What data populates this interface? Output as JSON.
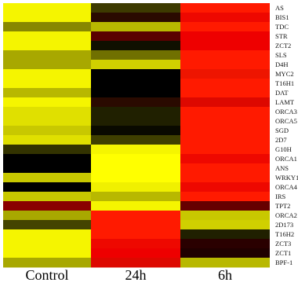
{
  "chart_data": {
    "type": "heatmap",
    "columns": [
      "Control",
      "24h",
      "6h"
    ],
    "rows": [
      "AS",
      "BIS1",
      "TDC",
      "STR",
      "ZCT2",
      "SLS",
      "D4H",
      "MYC2",
      "T16H1",
      "DAT",
      "LAMT",
      "ORCA3",
      "ORCA5",
      "SGD",
      "2D7",
      "G10H",
      "ORCA1",
      "ANS",
      "WRKY1",
      "ORCA4",
      "IRS",
      "TPT2",
      "ORCA2",
      "2D173",
      "T16H2",
      "ZCT3",
      "ZCT1",
      "BPF-1"
    ],
    "cell_colors": [
      [
        "#f5f500",
        "#3d3a00",
        "#ff1a00"
      ],
      [
        "#f5f500",
        "#2a0a00",
        "#ee0800"
      ],
      [
        "#888800",
        "#b8b800",
        "#ff1a00"
      ],
      [
        "#f5f500",
        "#5a0000",
        "#ee0000"
      ],
      [
        "#f5f500",
        "#101000",
        "#ee0000"
      ],
      [
        "#a8a800",
        "#707000",
        "#ff1a00"
      ],
      [
        "#a8a800",
        "#d0d000",
        "#ff1a00"
      ],
      [
        "#f5f500",
        "#000000",
        "#ee1500"
      ],
      [
        "#f5f500",
        "#000000",
        "#ff1a00"
      ],
      [
        "#b8b800",
        "#000000",
        "#ff1a00"
      ],
      [
        "#f5f500",
        "#2a0a00",
        "#dd0800"
      ],
      [
        "#e0e000",
        "#202000",
        "#ff1a00"
      ],
      [
        "#e0e000",
        "#202000",
        "#ff1a00"
      ],
      [
        "#c8c800",
        "#0a0a00",
        "#ff1a00"
      ],
      [
        "#e0e000",
        "#404000",
        "#ff1a00"
      ],
      [
        "#333300",
        "#f5f500",
        "#ff1a00"
      ],
      [
        "#000000",
        "#ffff00",
        "#ee0800"
      ],
      [
        "#000000",
        "#ffff00",
        "#ff1a00"
      ],
      [
        "#c8c800",
        "#ffff00",
        "#ff1a00"
      ],
      [
        "#000000",
        "#f0f000",
        "#ee0800"
      ],
      [
        "#c8c800",
        "#b8b800",
        "#ff1a00"
      ],
      [
        "#8a0000",
        "#f5f500",
        "#660000"
      ],
      [
        "#a8a800",
        "#ff1a00",
        "#c8c800"
      ],
      [
        "#444400",
        "#ff1a00",
        "#d0d000"
      ],
      [
        "#f5f500",
        "#ff1a00",
        "#202000"
      ],
      [
        "#f5f500",
        "#ee0800",
        "#2a0000"
      ],
      [
        "#f5f500",
        "#ee0000",
        "#200000"
      ],
      [
        "#a8a800",
        "#dd0800",
        "#b8b800"
      ]
    ]
  }
}
